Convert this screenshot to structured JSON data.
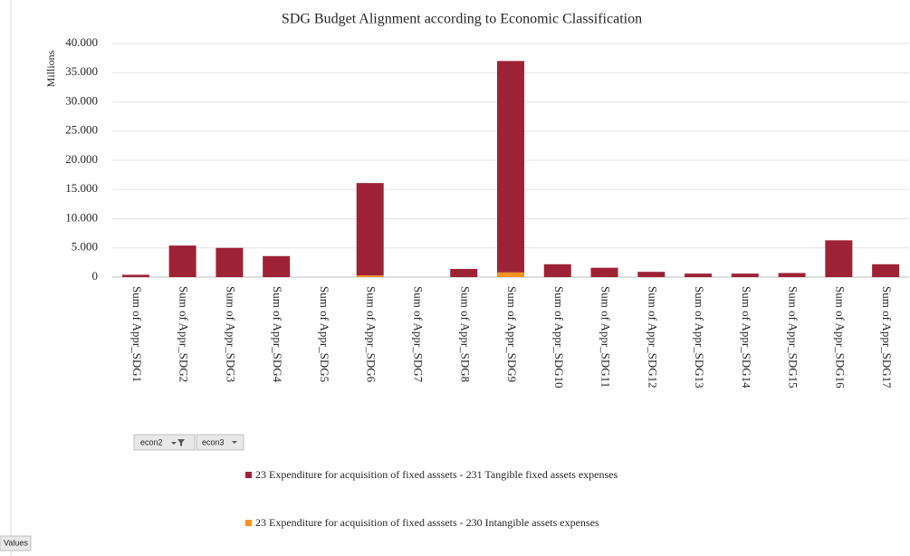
{
  "chart_data": {
    "type": "stacked_bar",
    "title": "SDG Budget Alignment according to Economic Classification",
    "y_label": "Millions",
    "categories": [
      "Sum of Appr_SDG1",
      "Sum of Appr_SDG2",
      "Sum of Appr_SDG3",
      "Sum of Appr_SDG4",
      "Sum of Appr_SDG5",
      "Sum of Appr_SDG6",
      "Sum of Appr_SDG7",
      "Sum of Appr_SDG8",
      "Sum of Appr_SDG9",
      "Sum of Appr_SDG10",
      "Sum of Appr_SDG11",
      "Sum of Appr_SDG12",
      "Sum of Appr_SDG13",
      "Sum of Appr_SDG14",
      "Sum of Appr_SDG15",
      "Sum of Appr_SDG16",
      "Sum of Appr_SDG17"
    ],
    "series": [
      {
        "name": "23 Expenditure for acquisition of fixed asssets - 231 Tangible fixed assets expenses",
        "color": "#9e2236",
        "values": [
          400,
          5400,
          5000,
          3600,
          0,
          15800,
          0,
          1400,
          36200,
          2200,
          1600,
          900,
          600,
          600,
          700,
          6300,
          2200
        ]
      },
      {
        "name": "23 Expenditure for acquisition of fixed asssets - 230 Intangible assets expenses",
        "color": "#f5921e",
        "values": [
          0,
          0,
          0,
          0,
          0,
          300,
          0,
          0,
          800,
          0,
          0,
          0,
          0,
          0,
          0,
          0,
          0
        ]
      }
    ],
    "ylim": [
      0,
      40000
    ],
    "yticks": [
      0,
      {
        "value": 5000,
        "label": "5.000"
      },
      {
        "value": 10000,
        "label": "10.000"
      },
      {
        "value": 15000,
        "label": "15.000"
      },
      {
        "value": 20000,
        "label": "20.000"
      },
      {
        "value": 25000,
        "label": "25.000"
      },
      {
        "value": 30000,
        "label": "30.000"
      },
      {
        "value": 35000,
        "label": "35.000"
      },
      {
        "value": 40000,
        "label": "40.000"
      }
    ],
    "grid": true
  },
  "ui": {
    "field_buttons": [
      "econ2",
      "econ3"
    ],
    "values_button": "Values"
  }
}
